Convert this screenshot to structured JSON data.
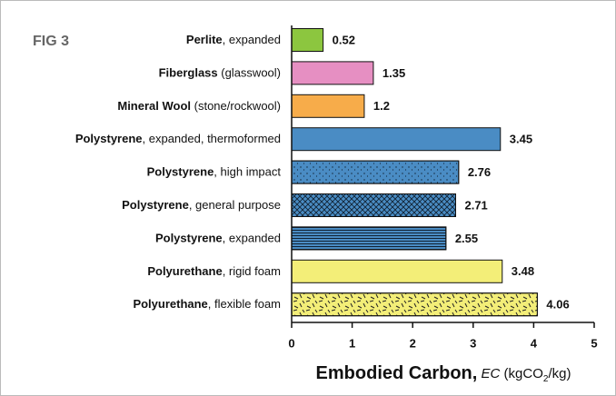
{
  "chart_data": {
    "type": "hbar",
    "annotation": "FIG 3",
    "categories": [
      {
        "bold": "Perlite",
        "rest": ", expanded"
      },
      {
        "bold": "Fiberglass",
        "rest": " (glasswool)"
      },
      {
        "bold": "Mineral Wool",
        "rest": " (stone/rockwool)"
      },
      {
        "bold": "Polystyrene",
        "rest": ", expanded, thermoformed"
      },
      {
        "bold": "Polystyrene",
        "rest": ", high impact"
      },
      {
        "bold": "Polystyrene",
        "rest": ", general purpose"
      },
      {
        "bold": "Polystyrene",
        "rest": ", expanded"
      },
      {
        "bold": "Polyurethane",
        "rest": ", rigid foam"
      },
      {
        "bold": "Polyurethane",
        "rest": ", flexible foam"
      }
    ],
    "values": [
      0.52,
      1.35,
      1.2,
      3.45,
      2.76,
      2.71,
      2.55,
      3.48,
      4.06
    ],
    "colors": [
      "#8cc63f",
      "#e68fc2",
      "#f7ac4a",
      "#4a8cc4",
      "#4a8cc4",
      "#4a8cc4",
      "#4a8cc4",
      "#f3ee78",
      "#f3ee78"
    ],
    "patterns": [
      "solid",
      "solid",
      "solid",
      "solid",
      "dots",
      "crosshatch",
      "hlines",
      "solid",
      "dashes"
    ],
    "xlim": [
      0,
      5
    ],
    "xticks": [
      0,
      1,
      2,
      3,
      4,
      5
    ],
    "x_label": {
      "bold": "Embodied Carbon,",
      "italic": "EC",
      "text": "(kgCO",
      "sub": "2",
      "tail": "/kg)"
    }
  }
}
